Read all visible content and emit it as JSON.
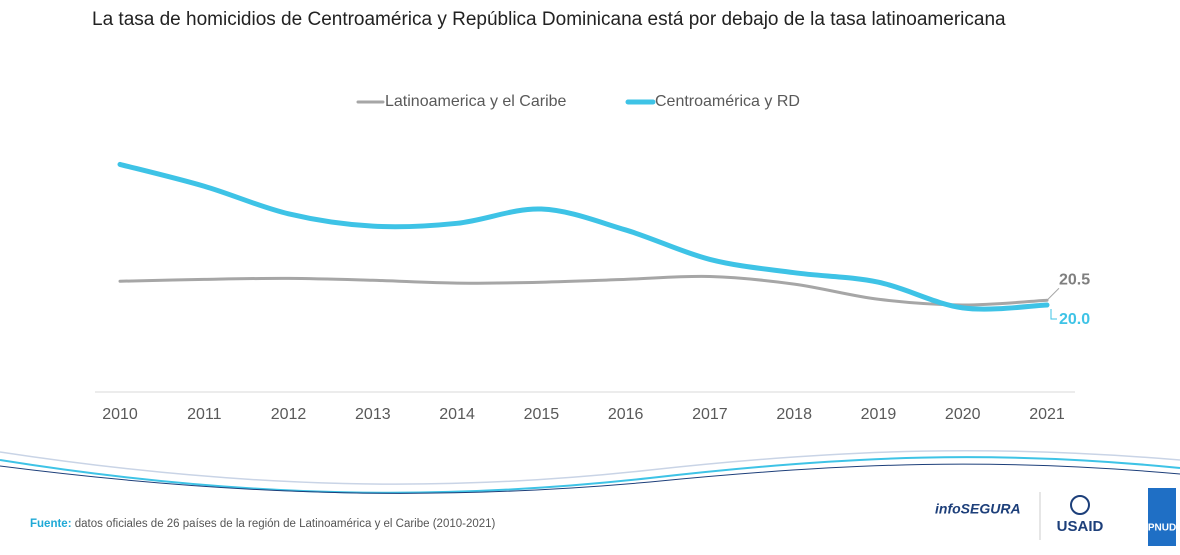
{
  "chart_data": {
    "type": "line",
    "title": "La tasa de homicidios de Centroamérica y República Dominicana está por debajo de la tasa latinoamericana",
    "categories": [
      "2010",
      "2011",
      "2012",
      "2013",
      "2014",
      "2015",
      "2016",
      "2017",
      "2018",
      "2019",
      "2020",
      "2021"
    ],
    "series": [
      {
        "name": "Latinoamerica y el Caribe",
        "color": "#a6a6a6",
        "width": 3,
        "values": [
          22.5,
          22.7,
          22.8,
          22.6,
          22.3,
          22.4,
          22.7,
          23.0,
          22.2,
          20.6,
          20.0,
          20.5
        ]
      },
      {
        "name": "Centroamérica y RD",
        "color": "#3ec3e6",
        "width": 5,
        "values": [
          34.8,
          32.5,
          29.6,
          28.3,
          28.6,
          30.1,
          27.9,
          24.8,
          23.4,
          22.4,
          19.7,
          20.0
        ],
        "value_labels": [
          null,
          null,
          null,
          null,
          null,
          null,
          null,
          null,
          null,
          null,
          null,
          "20.0"
        ]
      }
    ],
    "ylim": [
      10,
      36
    ],
    "legend": "top"
  },
  "footer": {
    "source_label": "Fuente:",
    "source": "datos oficiales de 26 países de la región de Latinoamérica y el Caribe (2010-2021)",
    "logos": [
      "infoSEGURA",
      "USAID",
      "PNUD"
    ]
  }
}
